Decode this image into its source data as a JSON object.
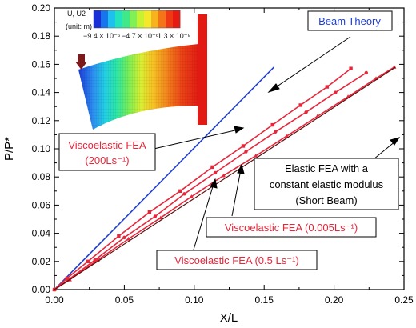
{
  "chart_data": {
    "type": "line",
    "xlabel": "X/L",
    "ylabel": "P/P*",
    "xlim": [
      0.0,
      0.25
    ],
    "ylim": [
      0.0,
      0.2
    ],
    "xticks": [
      "0.00",
      "0.05",
      "0.10",
      "0.15",
      "0.20",
      "0.25"
    ],
    "yticks": [
      "0.00",
      "0.02",
      "0.04",
      "0.06",
      "0.08",
      "0.10",
      "0.12",
      "0.14",
      "0.16",
      "0.18",
      "0.20"
    ],
    "grid": false,
    "series": [
      {
        "name": "Beam Theory",
        "color": "#1f3fd0",
        "marker": "none",
        "x": [
          0.0,
          0.157
        ],
        "y": [
          0.0,
          0.158
        ]
      },
      {
        "name": "Viscoelastic FEA (200Ls⁻¹)",
        "color": "#e8263a",
        "marker": "square",
        "x": [
          0.0,
          0.009,
          0.024,
          0.046,
          0.068,
          0.09,
          0.113,
          0.135,
          0.156,
          0.176,
          0.195,
          0.212
        ],
        "y": [
          0.0,
          0.008,
          0.02,
          0.038,
          0.055,
          0.07,
          0.087,
          0.102,
          0.117,
          0.131,
          0.144,
          0.157
        ]
      },
      {
        "name": "Viscoelastic FEA (0.5 Ls⁻¹)",
        "color": "#e8263a",
        "marker": "dot",
        "x": [
          0.0,
          0.01,
          0.029,
          0.05,
          0.072,
          0.093,
          0.115,
          0.137,
          0.158,
          0.18,
          0.201,
          0.223
        ],
        "y": [
          0.0,
          0.007,
          0.021,
          0.037,
          0.052,
          0.068,
          0.083,
          0.098,
          0.112,
          0.126,
          0.14,
          0.154
        ]
      },
      {
        "name": "Viscoelastic FEA  (0.005Ls⁻¹)",
        "color": "#e8263a",
        "marker": "triangle",
        "x": [
          0.0,
          0.011,
          0.031,
          0.053,
          0.076,
          0.098,
          0.121,
          0.144,
          0.166,
          0.188,
          0.21,
          0.23,
          0.243
        ],
        "y": [
          0.0,
          0.007,
          0.021,
          0.036,
          0.051,
          0.066,
          0.081,
          0.095,
          0.109,
          0.123,
          0.137,
          0.15,
          0.158
        ]
      },
      {
        "name": "Elastic FEA with  a constant elastic modulus (Short Beam)",
        "color": "#5a1010",
        "marker": "none",
        "x": [
          0.0,
          0.244
        ],
        "y": [
          0.0,
          0.158
        ]
      }
    ],
    "annotations": [
      {
        "text": "Beam Theory",
        "color": "#1f3fd0"
      },
      {
        "text": "Viscoelastic FEA",
        "text2": "(200Ls⁻¹)",
        "color": "#e8263a"
      },
      {
        "text": "Elastic FEA with  a",
        "text2": "constant elastic modulus",
        "text3": "(Short Beam)",
        "color": "#000000"
      },
      {
        "text": "Viscoelastic FEA  (0.005Ls⁻¹)",
        "color": "#e8263a"
      },
      {
        "text": "Viscoelastic FEA (0.5 Ls⁻¹)",
        "color": "#e8263a"
      }
    ],
    "inset": {
      "title": "U, U2",
      "unit": "(unit: m)",
      "colorbar_labels": [
        "−9.4 × 10⁻⁶",
        "−4.7 × 10⁻⁶",
        "1.3 × 10⁻⁸"
      ],
      "colorbar_colors": [
        "#1b2fd6",
        "#1a74ee",
        "#1ec0ee",
        "#23e3bd",
        "#3fe889",
        "#7ff055",
        "#c6f232",
        "#f5e82a",
        "#f8b21f",
        "#f47418",
        "#ee3a14",
        "#e61a12"
      ]
    }
  }
}
